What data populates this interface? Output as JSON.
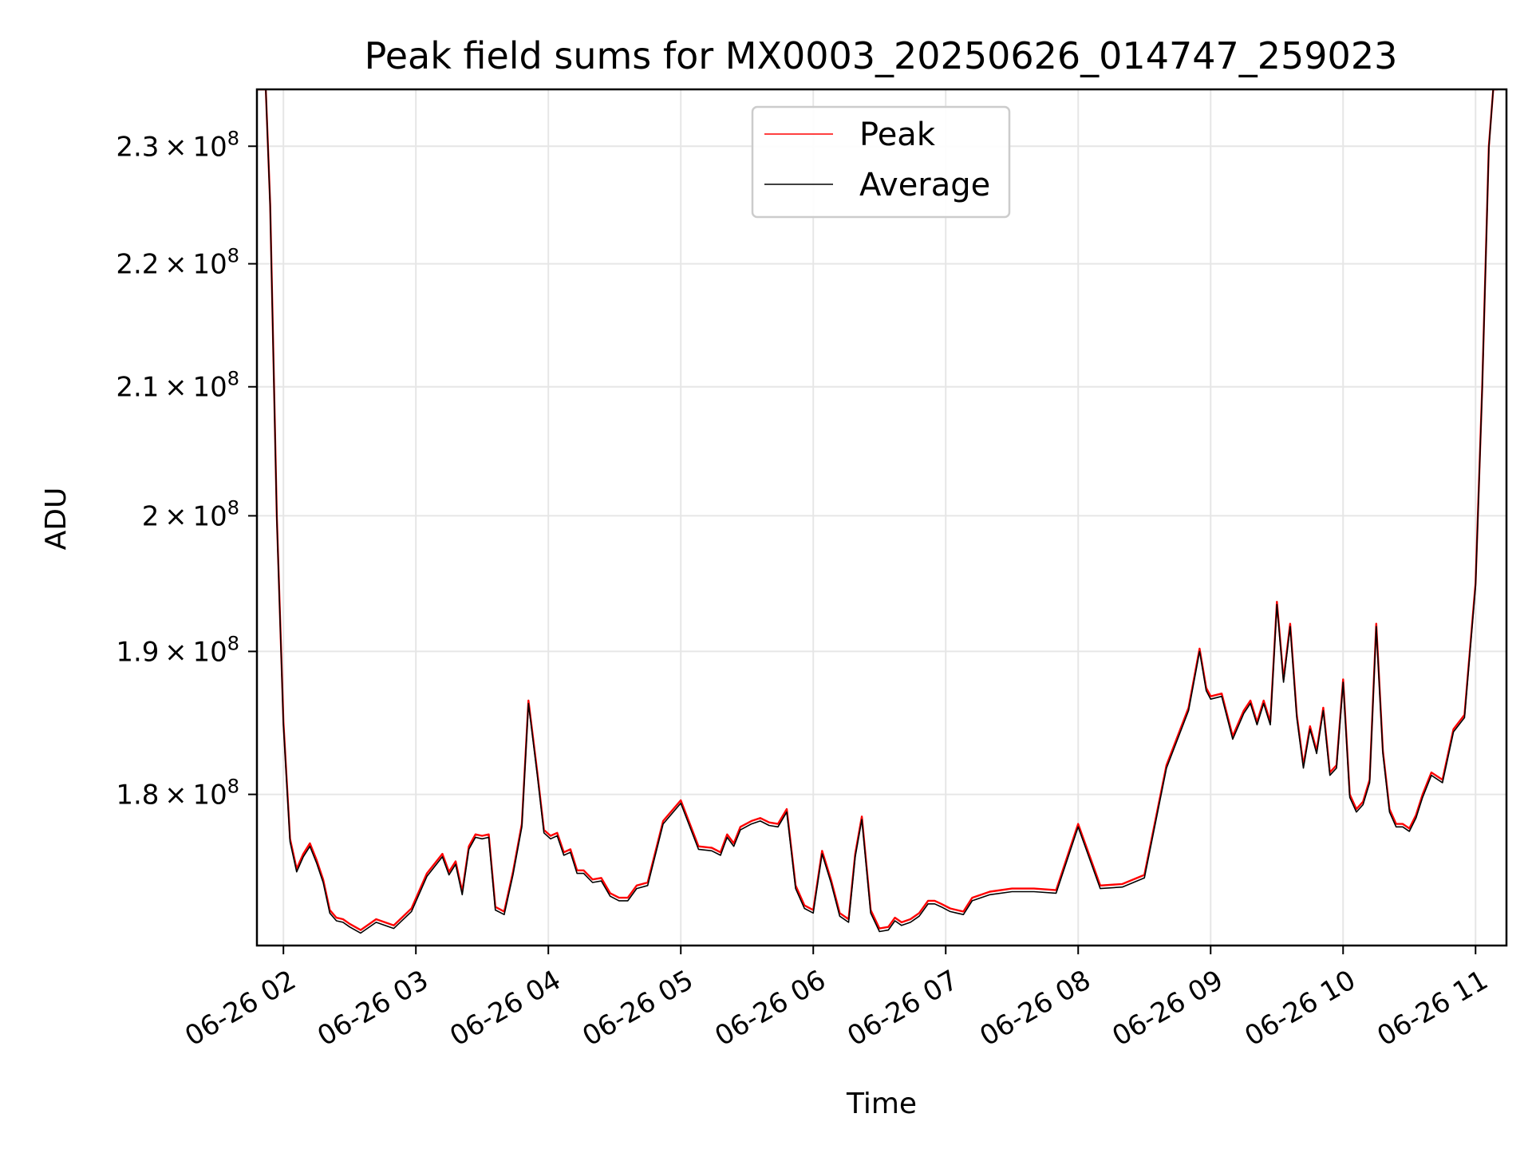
{
  "chart_data": {
    "type": "line",
    "title": "Peak field sums for MX0003_20250626_014747_259023",
    "xlabel": "Time",
    "ylabel": "ADU",
    "xlim": [
      "2025-06-26 01:48",
      "2025-06-26 11:14"
    ],
    "ylim": [
      170000000,
      235000000
    ],
    "yscale": "log",
    "grid": true,
    "legend_position": "top-center",
    "x_ticks": [
      "06-26 02",
      "06-26 03",
      "06-26 04",
      "06-26 05",
      "06-26 06",
      "06-26 07",
      "06-26 08",
      "06-26 09",
      "06-26 10",
      "06-26 11"
    ],
    "y_ticks": [
      {
        "value": 180000000,
        "mantissa": "1.8",
        "exponent": "8"
      },
      {
        "value": 190000000,
        "mantissa": "1.9",
        "exponent": "8"
      },
      {
        "value": 200000000,
        "mantissa": "2",
        "exponent": "8"
      },
      {
        "value": 210000000,
        "mantissa": "2.1",
        "exponent": "8"
      },
      {
        "value": 220000000,
        "mantissa": "2.2",
        "exponent": "8"
      },
      {
        "value": 230000000,
        "mantissa": "2.3",
        "exponent": "8"
      }
    ],
    "times": [
      "2025-06-26 01:48",
      "2025-06-26 01:52",
      "2025-06-26 01:54",
      "2025-06-26 01:57",
      "2025-06-26 02:00",
      "2025-06-26 02:03",
      "2025-06-26 02:06",
      "2025-06-26 02:09",
      "2025-06-26 02:12",
      "2025-06-26 02:15",
      "2025-06-26 02:18",
      "2025-06-26 02:21",
      "2025-06-26 02:24",
      "2025-06-26 02:27",
      "2025-06-26 02:30",
      "2025-06-26 02:35",
      "2025-06-26 02:42",
      "2025-06-26 02:50",
      "2025-06-26 02:58",
      "2025-06-26 03:05",
      "2025-06-26 03:12",
      "2025-06-26 03:15",
      "2025-06-26 03:18",
      "2025-06-26 03:21",
      "2025-06-26 03:24",
      "2025-06-26 03:27",
      "2025-06-26 03:30",
      "2025-06-26 03:33",
      "2025-06-26 03:36",
      "2025-06-26 03:40",
      "2025-06-26 03:44",
      "2025-06-26 03:48",
      "2025-06-26 03:51",
      "2025-06-26 03:55",
      "2025-06-26 03:58",
      "2025-06-26 04:01",
      "2025-06-26 04:04",
      "2025-06-26 04:07",
      "2025-06-26 04:10",
      "2025-06-26 04:13",
      "2025-06-26 04:16",
      "2025-06-26 04:20",
      "2025-06-26 04:24",
      "2025-06-26 04:28",
      "2025-06-26 04:32",
      "2025-06-26 04:36",
      "2025-06-26 04:40",
      "2025-06-26 04:45",
      "2025-06-26 04:52",
      "2025-06-26 05:00",
      "2025-06-26 05:08",
      "2025-06-26 05:14",
      "2025-06-26 05:18",
      "2025-06-26 05:21",
      "2025-06-26 05:24",
      "2025-06-26 05:27",
      "2025-06-26 05:32",
      "2025-06-26 05:36",
      "2025-06-26 05:40",
      "2025-06-26 05:44",
      "2025-06-26 05:48",
      "2025-06-26 05:52",
      "2025-06-26 05:56",
      "2025-06-26 06:00",
      "2025-06-26 06:04",
      "2025-06-26 06:08",
      "2025-06-26 06:12",
      "2025-06-26 06:16",
      "2025-06-26 06:19",
      "2025-06-26 06:22",
      "2025-06-26 06:26",
      "2025-06-26 06:30",
      "2025-06-26 06:34",
      "2025-06-26 06:37",
      "2025-06-26 06:40",
      "2025-06-26 06:44",
      "2025-06-26 06:48",
      "2025-06-26 06:52",
      "2025-06-26 06:55",
      "2025-06-26 06:58",
      "2025-06-26 07:02",
      "2025-06-26 07:05",
      "2025-06-26 07:08",
      "2025-06-26 07:12",
      "2025-06-26 07:20",
      "2025-06-26 07:30",
      "2025-06-26 07:40",
      "2025-06-26 07:50",
      "2025-06-26 08:00",
      "2025-06-26 08:10",
      "2025-06-26 08:20",
      "2025-06-26 08:30",
      "2025-06-26 08:40",
      "2025-06-26 08:50",
      "2025-06-26 08:55",
      "2025-06-26 08:58",
      "2025-06-26 09:00",
      "2025-06-26 09:05",
      "2025-06-26 09:10",
      "2025-06-26 09:15",
      "2025-06-26 09:18",
      "2025-06-26 09:21",
      "2025-06-26 09:24",
      "2025-06-26 09:27",
      "2025-06-26 09:30",
      "2025-06-26 09:33",
      "2025-06-26 09:36",
      "2025-06-26 09:39",
      "2025-06-26 09:42",
      "2025-06-26 09:45",
      "2025-06-26 09:48",
      "2025-06-26 09:51",
      "2025-06-26 09:54",
      "2025-06-26 09:57",
      "2025-06-26 10:00",
      "2025-06-26 10:03",
      "2025-06-26 10:06",
      "2025-06-26 10:09",
      "2025-06-26 10:12",
      "2025-06-26 10:15",
      "2025-06-26 10:18",
      "2025-06-26 10:21",
      "2025-06-26 10:24",
      "2025-06-26 10:27",
      "2025-06-26 10:30",
      "2025-06-26 10:33",
      "2025-06-26 10:36",
      "2025-06-26 10:40",
      "2025-06-26 10:45",
      "2025-06-26 10:50",
      "2025-06-26 10:55",
      "2025-06-26 11:00",
      "2025-06-26 11:03",
      "2025-06-26 11:06",
      "2025-06-26 11:08",
      "2025-06-26 11:10",
      "2025-06-26 11:12",
      "2025-06-26 11:14"
    ],
    "series": [
      {
        "name": "Peak",
        "color": "#ff0000",
        "values": [
          235000000,
          235000000,
          225000000,
          200000000,
          185000000,
          177000000,
          175000000,
          176000000,
          176700000,
          175600000,
          174300000,
          172300000,
          171800000,
          171700000,
          171400000,
          171000000,
          171700000,
          171300000,
          172400000,
          174700000,
          176000000,
          174800000,
          175500000,
          173500000,
          176500000,
          177300000,
          177200000,
          177300000,
          172500000,
          172200000,
          174800000,
          178000000,
          186500000,
          181500000,
          177600000,
          177200000,
          177400000,
          176100000,
          176300000,
          174900000,
          174900000,
          174300000,
          174400000,
          173400000,
          173100000,
          173100000,
          173900000,
          174100000,
          178200000,
          179600000,
          176500000,
          176400000,
          176100000,
          177300000,
          176700000,
          177800000,
          178200000,
          178400000,
          178100000,
          178000000,
          179000000,
          173900000,
          172600000,
          172300000,
          176200000,
          174300000,
          172100000,
          171700000,
          176000000,
          178500000,
          172300000,
          171100000,
          171200000,
          171800000,
          171500000,
          171700000,
          172100000,
          172900000,
          172900000,
          172700000,
          172400000,
          172300000,
          172200000,
          173100000,
          173500000,
          173700000,
          173700000,
          173600000,
          178000000,
          173900000,
          174000000,
          174600000,
          182000000,
          186000000,
          190200000,
          187400000,
          186800000,
          187000000,
          184000000,
          185800000,
          186500000,
          185000000,
          186500000,
          185000000,
          193600000,
          188000000,
          192000000,
          185500000,
          182000000,
          184700000,
          183000000,
          186000000,
          181500000,
          182000000,
          188000000,
          180000000,
          179000000,
          179500000,
          181000000,
          192000000,
          183000000,
          179000000,
          178000000,
          178000000,
          177700000,
          178600000,
          180000000,
          181500000,
          181000000,
          184500000,
          185500000,
          195000000,
          210000000,
          230000000,
          235000000,
          235000000
        ]
      },
      {
        "name": "Average",
        "color": "#000000",
        "values": [
          235000000,
          235000000,
          224800000,
          199800000,
          184800000,
          176800000,
          174800000,
          175800000,
          176500000,
          175400000,
          174100000,
          172100000,
          171600000,
          171500000,
          171200000,
          170800000,
          171500000,
          171100000,
          172200000,
          174500000,
          175800000,
          174600000,
          175300000,
          173300000,
          176300000,
          177100000,
          177000000,
          177100000,
          172300000,
          172000000,
          174600000,
          177800000,
          186300000,
          181300000,
          177400000,
          177000000,
          177200000,
          175900000,
          176100000,
          174700000,
          174700000,
          174100000,
          174200000,
          173200000,
          172900000,
          172900000,
          173700000,
          173900000,
          178000000,
          179400000,
          176300000,
          176200000,
          175900000,
          177100000,
          176500000,
          177600000,
          178000000,
          178200000,
          177900000,
          177800000,
          178800000,
          173700000,
          172400000,
          172100000,
          176000000,
          174100000,
          171900000,
          171500000,
          175800000,
          178300000,
          172100000,
          170900000,
          171000000,
          171600000,
          171300000,
          171500000,
          171900000,
          172700000,
          172700000,
          172500000,
          172200000,
          172100000,
          172000000,
          172900000,
          173300000,
          173500000,
          173500000,
          173400000,
          177800000,
          173700000,
          173800000,
          174400000,
          181800000,
          185800000,
          190000000,
          187200000,
          186600000,
          186800000,
          183800000,
          185600000,
          186300000,
          184800000,
          186300000,
          184800000,
          193400000,
          187800000,
          191800000,
          185300000,
          181800000,
          184500000,
          182800000,
          185800000,
          181300000,
          181800000,
          187800000,
          179800000,
          178800000,
          179300000,
          180800000,
          191800000,
          182800000,
          178800000,
          177800000,
          177800000,
          177500000,
          178400000,
          179800000,
          181300000,
          180800000,
          184300000,
          185300000,
          194800000,
          209800000,
          229800000,
          235000000,
          235000000
        ]
      }
    ],
    "legend": [
      {
        "name": "Peak",
        "color": "#ff0000"
      },
      {
        "name": "Average",
        "color": "#000000"
      }
    ]
  }
}
